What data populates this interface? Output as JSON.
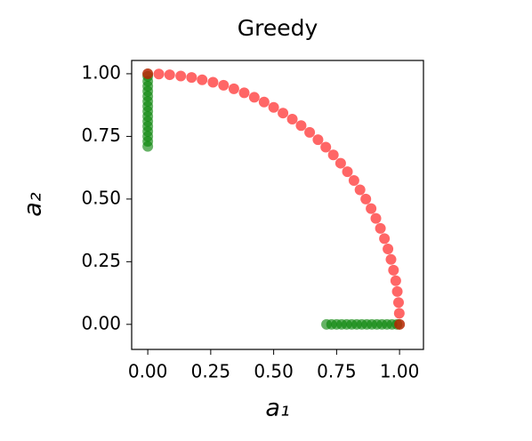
{
  "chart_data": {
    "type": "scatter",
    "title": "Greedy",
    "xlabel": "a₁",
    "ylabel": "a₂",
    "xlim": [
      -0.064,
      1.095
    ],
    "ylim": [
      -0.1,
      1.053
    ],
    "xticks": [
      {
        "value": 0,
        "label": "0.00"
      },
      {
        "value": 0.25,
        "label": "0.25"
      },
      {
        "value": 0.5,
        "label": "0.50"
      },
      {
        "value": 0.75,
        "label": "0.75"
      },
      {
        "value": 1,
        "label": "1.00"
      }
    ],
    "yticks": [
      {
        "value": 0,
        "label": "0.00"
      },
      {
        "value": 0.25,
        "label": "0.25"
      },
      {
        "value": 0.5,
        "label": "0.50"
      },
      {
        "value": 0.75,
        "label": "0.75"
      },
      {
        "value": 1,
        "label": "1.00"
      }
    ],
    "series": [
      {
        "color": "#008000",
        "x": [
          0,
          0,
          0,
          0,
          0,
          0,
          0,
          0,
          0,
          0,
          0,
          0,
          0,
          0,
          0,
          0
        ],
        "values": [
          0.71,
          0.73,
          0.75,
          0.77,
          0.79,
          0.81,
          0.83,
          0.85,
          0.87,
          0.89,
          0.91,
          0.93,
          0.95,
          0.97,
          0.99,
          1.0
        ]
      },
      {
        "color": "#008000",
        "x": [
          0.71,
          0.73,
          0.75,
          0.77,
          0.79,
          0.81,
          0.83,
          0.85,
          0.87,
          0.89,
          0.91,
          0.93,
          0.95,
          0.97,
          0.99,
          1.0
        ],
        "values": [
          0,
          0,
          0,
          0,
          0,
          0,
          0,
          0,
          0,
          0,
          0,
          0,
          0,
          0,
          0,
          0
        ]
      },
      {
        "color": "#ff0000",
        "x": [
          1,
          0.999,
          0.996,
          0.991,
          0.985,
          0.976,
          0.966,
          0.954,
          0.94,
          0.924,
          0.906,
          0.887,
          0.866,
          0.843,
          0.819,
          0.793,
          0.766,
          0.737,
          0.707,
          0.676,
          0.643,
          0.609,
          0.574,
          0.537,
          0.5,
          0.462,
          0.423,
          0.383,
          0.342,
          0.301,
          0.259,
          0.216,
          0.174,
          0.131,
          0.087,
          0.044,
          0
        ],
        "values": [
          0,
          0.044,
          0.087,
          0.131,
          0.174,
          0.216,
          0.259,
          0.301,
          0.342,
          0.383,
          0.423,
          0.462,
          0.5,
          0.537,
          0.574,
          0.609,
          0.643,
          0.676,
          0.707,
          0.737,
          0.766,
          0.793,
          0.819,
          0.843,
          0.866,
          0.887,
          0.906,
          0.924,
          0.94,
          0.954,
          0.966,
          0.976,
          0.985,
          0.991,
          0.996,
          0.999,
          1
        ]
      }
    ]
  }
}
